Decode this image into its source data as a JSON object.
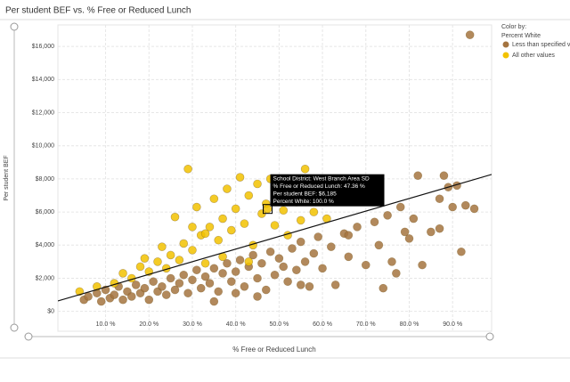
{
  "chart_data": {
    "type": "scatter",
    "title": "Per student BEF vs. % Free or Reduced Lunch",
    "x_label": "% Free or Reduced Lunch",
    "y_label": "Per student BEF",
    "legend_title": "Color by:",
    "legend_subtitle": "Percent White",
    "xlim": [
      -1,
      99
    ],
    "ylim": [
      -1200,
      17300
    ],
    "xticks": [
      {
        "value": 10,
        "label": "10.0 %"
      },
      {
        "value": 20,
        "label": "20.0 %"
      },
      {
        "value": 30,
        "label": "30.0 %"
      },
      {
        "value": 40,
        "label": "40.0 %"
      },
      {
        "value": 50,
        "label": "50.0 %"
      },
      {
        "value": 60,
        "label": "60.0 %"
      },
      {
        "value": 70,
        "label": "70.0 %"
      },
      {
        "value": 80,
        "label": "80.0 %"
      },
      {
        "value": 90,
        "label": "90.0 %"
      }
    ],
    "yticks": [
      {
        "value": 0,
        "label": "$0"
      },
      {
        "value": 2000,
        "label": "$2,000"
      },
      {
        "value": 4000,
        "label": "$4,000"
      },
      {
        "value": 6000,
        "label": "$6,000"
      },
      {
        "value": 8000,
        "label": "$8,000"
      },
      {
        "value": 10000,
        "label": "$10,000"
      },
      {
        "value": 12000,
        "label": "$12,000"
      },
      {
        "value": 14000,
        "label": "$14,000"
      },
      {
        "value": 16000,
        "label": "$16,000"
      }
    ],
    "grid": true,
    "series": [
      {
        "name": "Less than specified va",
        "color": "#a47440",
        "x": [
          5,
          6,
          8,
          9,
          10,
          11,
          12,
          13,
          14,
          15,
          16,
          17,
          18,
          19,
          20,
          21,
          22,
          23,
          24,
          25,
          26,
          27,
          28,
          29,
          30,
          31,
          32,
          33,
          34,
          35,
          36,
          37,
          38,
          39,
          40,
          41,
          42,
          43,
          44,
          45,
          46,
          47,
          48,
          49,
          50,
          51,
          52,
          53,
          54,
          55,
          56,
          57,
          58,
          59,
          60,
          62,
          63,
          65,
          66,
          68,
          70,
          72,
          73,
          75,
          76,
          78,
          80,
          81,
          83,
          85,
          87,
          88,
          89,
          90,
          91,
          93,
          95,
          94,
          74,
          82,
          87,
          92,
          77,
          79,
          66,
          55,
          35,
          40,
          45
        ],
        "values": [
          700,
          900,
          1100,
          600,
          1300,
          800,
          1000,
          1500,
          700,
          1200,
          900,
          1600,
          1100,
          1400,
          700,
          1800,
          1200,
          1500,
          1000,
          2000,
          1300,
          1700,
          2200,
          1100,
          1900,
          2500,
          1400,
          2100,
          1700,
          2600,
          1200,
          2300,
          2900,
          1800,
          2400,
          3100,
          1500,
          2700,
          3400,
          2000,
          2900,
          1300,
          3600,
          2200,
          3200,
          2700,
          1800,
          3800,
          2500,
          4200,
          3000,
          1500,
          3500,
          4500,
          2600,
          3900,
          1600,
          4700,
          3300,
          5100,
          2800,
          5400,
          4000,
          5800,
          3000,
          6300,
          4400,
          5600,
          2800,
          4800,
          6800,
          8200,
          7500,
          6300,
          7600,
          6400,
          6200,
          16700,
          1400,
          8200,
          5000,
          3600,
          2300,
          4800,
          4600,
          1600,
          600,
          1100,
          900
        ]
      },
      {
        "name": "All other values",
        "color": "#f2c200",
        "x": [
          4,
          8,
          12,
          14,
          16,
          18,
          19,
          20,
          22,
          23,
          24,
          25,
          26,
          27,
          28,
          29,
          30,
          31,
          32,
          33,
          34,
          35,
          36,
          37,
          38,
          39,
          40,
          41,
          42,
          43,
          44,
          45,
          46,
          47,
          47.36,
          48,
          49,
          50,
          51,
          52,
          53,
          54,
          55,
          56,
          57,
          58,
          60,
          61,
          43,
          37,
          33,
          30
        ],
        "values": [
          1200,
          1500,
          1700,
          2300,
          2000,
          2700,
          3200,
          2400,
          3000,
          3900,
          2600,
          3400,
          5700,
          3100,
          4100,
          8600,
          3700,
          6300,
          4600,
          2900,
          5100,
          6800,
          4300,
          5600,
          7400,
          4900,
          6200,
          8100,
          5300,
          7000,
          4000,
          7700,
          5900,
          6500,
          6185,
          8000,
          5200,
          7300,
          6100,
          4600,
          7900,
          6600,
          5500,
          8600,
          7100,
          6000,
          6700,
          5600,
          3000,
          3300,
          4700,
          5100
        ]
      }
    ],
    "trend_line": {
      "x": [
        -1,
        99
      ],
      "values": [
        630,
        8270
      ],
      "color": "#111111"
    },
    "tooltip": {
      "x": 47.36,
      "y": 6185,
      "lines": [
        "School District: West Branch Area SD",
        "% Free or Reduced Lunch: 47.36 %",
        "Per student BEF: $6,185",
        "Percent White: 100.0 %"
      ]
    }
  }
}
